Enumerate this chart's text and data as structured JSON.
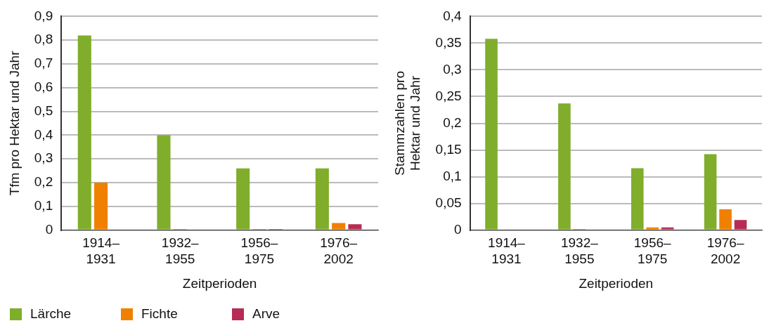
{
  "chart_data": [
    {
      "type": "bar",
      "xlabel": "Zeitperioden",
      "ylabel": "Tfm pro Hektar und Jahr",
      "categories": [
        "1914–1931",
        "1932–1955",
        "1956–1975",
        "1976–2002"
      ],
      "series": [
        {
          "name": "Lärche",
          "color": "#80ad2b",
          "values": [
            0.82,
            0.4,
            0.26,
            0.26
          ]
        },
        {
          "name": "Fichte",
          "color": "#f08000",
          "values": [
            0.2,
            0.005,
            0.005,
            0.03
          ]
        },
        {
          "name": "Arve",
          "color": "#b72c54",
          "values": [
            0,
            0,
            0.005,
            0.025
          ]
        }
      ],
      "ylim": [
        0,
        0.9
      ],
      "yticks": [
        {
          "value": 0,
          "label": "0"
        },
        {
          "value": 0.1,
          "label": "0,1"
        },
        {
          "value": 0.2,
          "label": "0,2"
        },
        {
          "value": 0.3,
          "label": "0,3"
        },
        {
          "value": 0.4,
          "label": "0,4"
        },
        {
          "value": 0.5,
          "label": "0,5"
        },
        {
          "value": 0.6,
          "label": "0,6"
        },
        {
          "value": 0.7,
          "label": "0,7"
        },
        {
          "value": 0.8,
          "label": "0,8"
        },
        {
          "value": 0.9,
          "label": "0,9"
        }
      ],
      "grid": "y",
      "legend": "bottom left"
    },
    {
      "type": "bar",
      "xlabel": "Zeitperioden",
      "ylabel": "Stammzahlen pro Hektar und Jahr",
      "categories": [
        "1914–1931",
        "1932–1955",
        "1956–1975",
        "1976–2002"
      ],
      "series": [
        {
          "color": "#80ad2b",
          "values": [
            0.358,
            0.237,
            0.116,
            0.142
          ]
        },
        {
          "color": "#f08000",
          "values": [
            0,
            0.002,
            0.005,
            0.039
          ]
        },
        {
          "color": "#b72c54",
          "values": [
            0,
            0,
            0.005,
            0.019
          ]
        }
      ],
      "ylim": [
        0,
        0.4
      ],
      "yticks": [
        {
          "value": 0,
          "label": "0"
        },
        {
          "value": 0.05,
          "label": "0,05"
        },
        {
          "value": 0.1,
          "label": "0,1"
        },
        {
          "value": 0.15,
          "label": "0,15"
        },
        {
          "value": 0.2,
          "label": "0,2"
        },
        {
          "value": 0.25,
          "label": "0,25"
        },
        {
          "value": 0.3,
          "label": "0,3"
        },
        {
          "value": 0.35,
          "label": "0,35"
        },
        {
          "value": 0.4,
          "label": "0,4"
        }
      ],
      "grid": "y",
      "legend": false
    }
  ]
}
